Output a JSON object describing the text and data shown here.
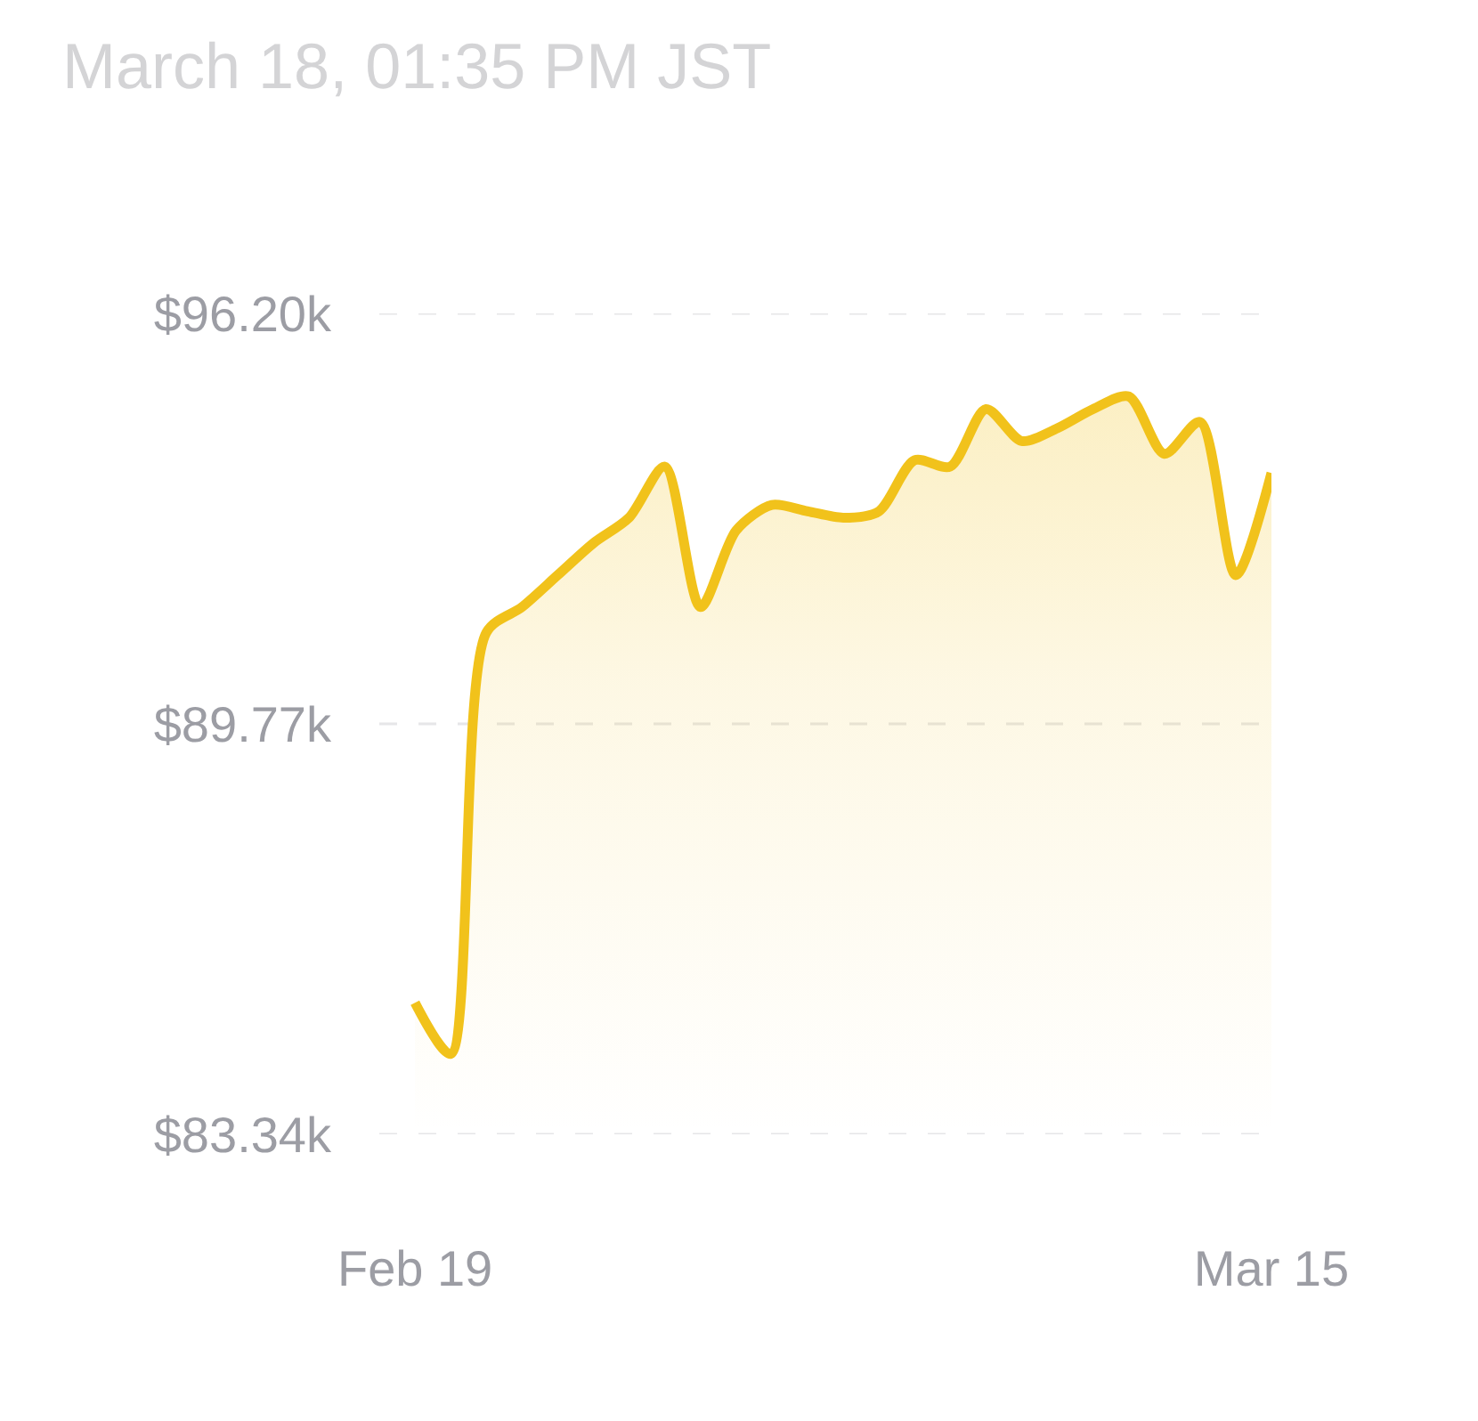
{
  "chart_data": {
    "type": "area",
    "title": "March 18, 01:35 PM JST",
    "x": [
      "--02-19",
      "--02-20",
      "--02-21",
      "--02-22",
      "--02-23",
      "--02-24",
      "--02-25",
      "--02-26",
      "--02-27",
      "--02-28",
      "--03-01",
      "--03-02",
      "--03-03",
      "--03-04",
      "--03-05",
      "--03-06",
      "--03-07",
      "--03-08",
      "--03-09",
      "--03-10",
      "--03-11",
      "--03-12",
      "--03-13",
      "--03-14",
      "--03-15"
    ],
    "values": [
      85.4,
      84.6,
      91.2,
      91.6,
      92.1,
      92.6,
      93.0,
      93.8,
      91.6,
      92.8,
      93.2,
      93.1,
      93.0,
      93.1,
      93.9,
      93.8,
      94.7,
      94.2,
      94.4,
      94.7,
      94.9,
      94.0,
      94.5,
      92.1,
      93.7
    ],
    "color": "#f1c21b",
    "xlim": [
      "--02-18",
      "--03-15"
    ],
    "ylim": [
      83.34,
      96.2
    ],
    "xticks": [
      {
        "value": "--02-19",
        "label": "Feb 19"
      },
      {
        "value": "--03-15",
        "label": "Mar 15"
      }
    ],
    "yticks": [
      {
        "value": 83.34,
        "label": "$83.34k"
      },
      {
        "value": 89.77,
        "label": "$89.77k"
      },
      {
        "value": 96.2,
        "label": "$96.20k"
      }
    ],
    "grid": "y"
  }
}
